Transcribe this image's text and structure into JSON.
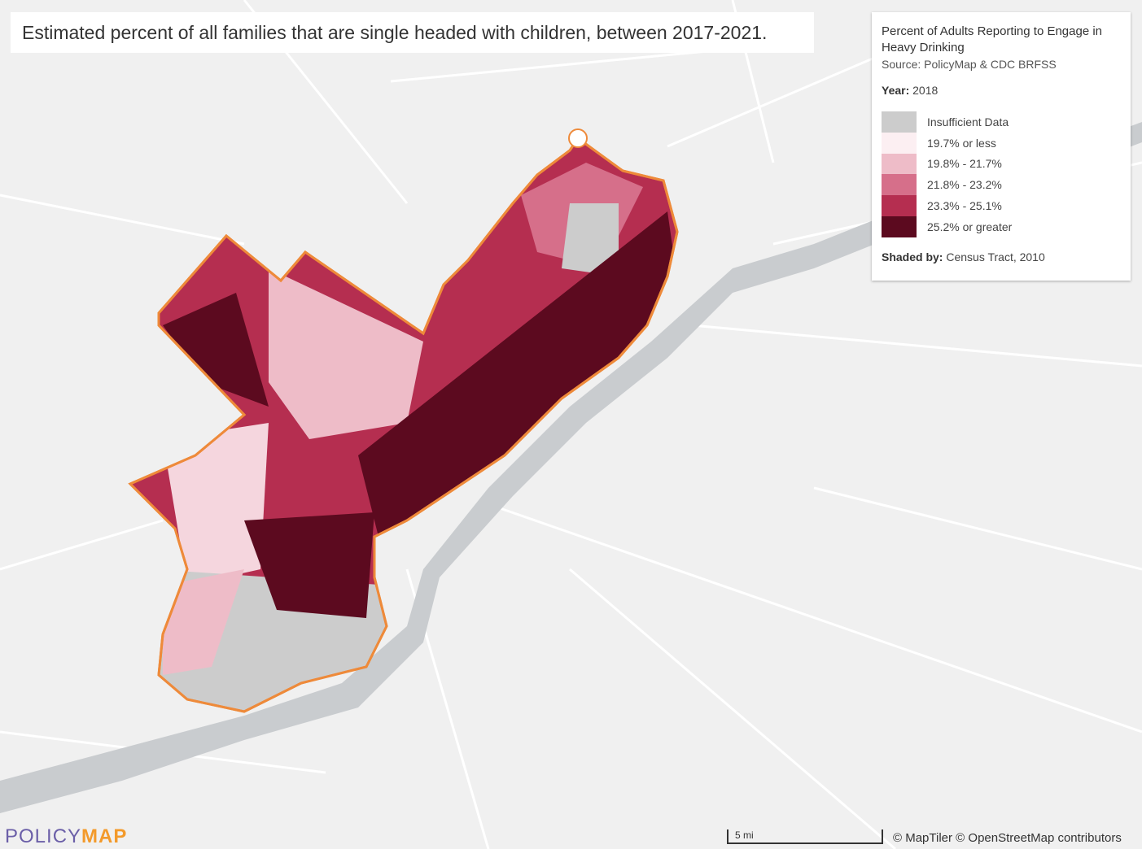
{
  "title": "Estimated percent of all families that are single headed with children, between 2017-2021.",
  "legend": {
    "title": "Percent of Adults Reporting to Engage in Heavy Drinking",
    "source": "Source: PolicyMap & CDC BRFSS",
    "year_label": "Year:",
    "year": "2018",
    "items": [
      {
        "label": "Insufficient Data",
        "color": "#cccccc"
      },
      {
        "label": "19.7% or less",
        "color": "#fcefF2"
      },
      {
        "label": "19.8% - 21.7%",
        "color": "#eebcc8"
      },
      {
        "label": "21.8% - 23.2%",
        "color": "#d66f8a"
      },
      {
        "label": "23.3% - 25.1%",
        "color": "#b52e50"
      },
      {
        "label": "25.2% or greater",
        "color": "#5c0a1f"
      }
    ],
    "shaded_by_label": "Shaded by:",
    "shaded_by": "Census Tract, 2010"
  },
  "scale_bar": "5 mi",
  "attribution": "© MapTiler © OpenStreetMap contributors",
  "logo": {
    "left": "POLICY",
    "right": "MAP"
  }
}
